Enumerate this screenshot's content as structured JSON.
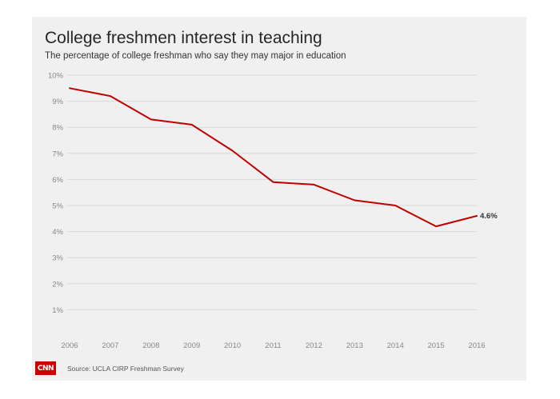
{
  "chart_data": {
    "type": "line",
    "title": "College freshmen interest in teaching",
    "subtitle": "The percentage of college freshman who say they may major in education",
    "x": [
      "2006",
      "2007",
      "2008",
      "2009",
      "2010",
      "2011",
      "2012",
      "2013",
      "2014",
      "2015",
      "2016"
    ],
    "series": [
      {
        "values": [
          9.5,
          9.2,
          8.3,
          8.1,
          7.1,
          5.9,
          5.8,
          5.2,
          5.0,
          4.2,
          4.6
        ]
      }
    ],
    "y_ticks": [
      "1%",
      "2%",
      "3%",
      "4%",
      "5%",
      "6%",
      "7%",
      "8%",
      "9%",
      "10%"
    ],
    "ylim": [
      0,
      10
    ],
    "grid": true,
    "end_label": "4.6%",
    "line_color": "#c00000"
  },
  "source": "Source: UCLA CIRP Freshman Survey",
  "logo": {
    "text": "CNN",
    "color": "#cc0000"
  }
}
